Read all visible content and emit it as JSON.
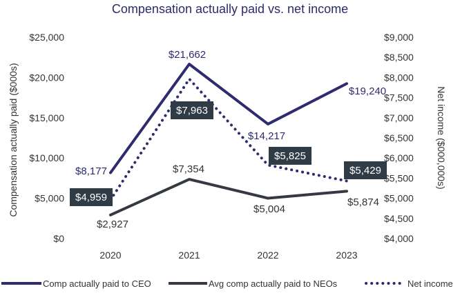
{
  "chart_data": {
    "type": "line",
    "title": "Compensation actually paid vs. net income",
    "categories": [
      "2020",
      "2021",
      "2022",
      "2023"
    ],
    "y_left": {
      "label": "Compensation actually paid ($000s)",
      "range": [
        0,
        25000
      ],
      "ticks": [
        "$0",
        "$5,000",
        "$10,000",
        "$15,000",
        "$20,000",
        "$25,000"
      ]
    },
    "y_right": {
      "label": "Net income ($000,000s)",
      "range": [
        4000,
        9000
      ],
      "ticks": [
        "$4,000",
        "$4,500",
        "$5,000",
        "$5,500",
        "$6,000",
        "$6,500",
        "$7,000",
        "$7,500",
        "$8,000",
        "$8,500",
        "$9,000"
      ]
    },
    "series": [
      {
        "name": "Comp actually paid to CEO",
        "axis": "left",
        "style": "solid",
        "color": "#2e2b6e",
        "values": [
          8177,
          21662,
          14217,
          19240
        ],
        "labels": [
          "$8,177",
          "$21,662",
          "$14,217",
          "$19,240"
        ]
      },
      {
        "name": "Avg comp actually paid to NEOs",
        "axis": "left",
        "style": "solid",
        "color": "#353a42",
        "values": [
          2927,
          7354,
          5004,
          5874
        ],
        "labels": [
          "$2,927",
          "$7,354",
          "$5,004",
          "$5,874"
        ]
      },
      {
        "name": "Net income",
        "axis": "right",
        "style": "dotted",
        "color": "#2e2b6e",
        "values": [
          4959,
          7963,
          5825,
          5429
        ],
        "labels": [
          "$4,959",
          "$7,963",
          "$5,825",
          "$5,429"
        ]
      }
    ],
    "legend": "bottom"
  },
  "colors": {
    "ceo": "#2e2b6e",
    "neo": "#353a42",
    "net_income_box": "#2f3b45",
    "title": "#2b2b6b"
  }
}
